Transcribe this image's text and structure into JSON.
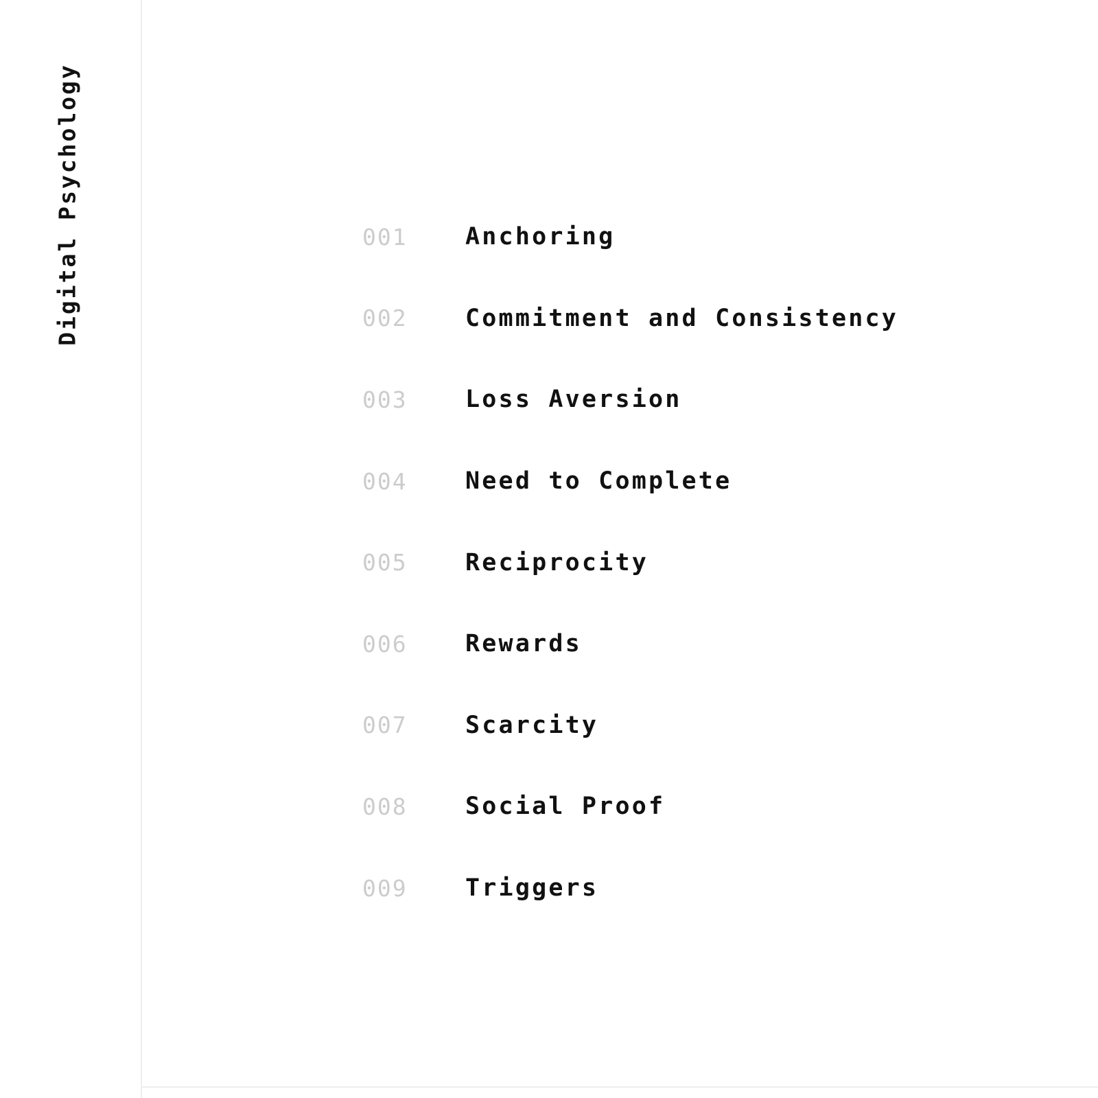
{
  "sidebar": {
    "brand": "Digital Psychology"
  },
  "topics": [
    {
      "number": "001",
      "label": "Anchoring"
    },
    {
      "number": "002",
      "label": "Commitment and Consistency"
    },
    {
      "number": "003",
      "label": "Loss Aversion"
    },
    {
      "number": "004",
      "label": "Need to Complete"
    },
    {
      "number": "005",
      "label": "Reciprocity"
    },
    {
      "number": "006",
      "label": "Rewards"
    },
    {
      "number": "007",
      "label": "Scarcity"
    },
    {
      "number": "008",
      "label": "Social Proof"
    },
    {
      "number": "009",
      "label": "Triggers"
    }
  ],
  "colors": {
    "text": "#111111",
    "number": "#cccccc",
    "divider": "#eeeeee",
    "background": "#ffffff"
  }
}
